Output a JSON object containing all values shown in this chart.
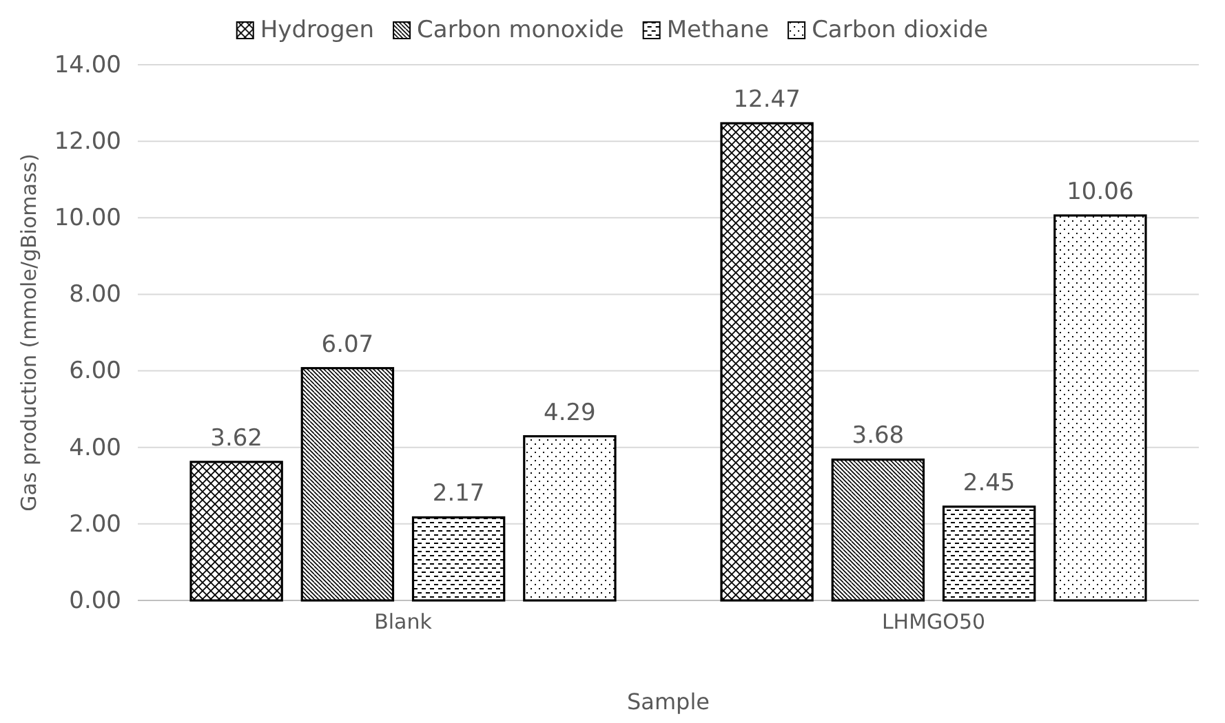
{
  "chart_data": {
    "type": "bar",
    "xlabel": "Sample",
    "ylabel": "Gas production (mmole/gBiomass)",
    "categories": [
      "Blank",
      "LHMGO50"
    ],
    "series": [
      {
        "name": "Hydrogen",
        "color": "#000000",
        "values": [
          3.62,
          12.47
        ]
      },
      {
        "name": "Carbon monoxide",
        "color": "#000000",
        "values": [
          6.07,
          3.68
        ]
      },
      {
        "name": "Methane",
        "color": "#000000",
        "values": [
          2.17,
          2.45
        ]
      },
      {
        "name": "Carbon dioxide",
        "color": "#000000",
        "values": [
          4.29,
          10.06
        ]
      }
    ],
    "ylim": [
      0,
      14
    ],
    "yticks": [
      {
        "value": 0,
        "label": "0.00"
      },
      {
        "value": 2,
        "label": "2.00"
      },
      {
        "value": 4,
        "label": "4.00"
      },
      {
        "value": 6,
        "label": "6.00"
      },
      {
        "value": 8,
        "label": "8.00"
      },
      {
        "value": 10,
        "label": "10.00"
      },
      {
        "value": 12,
        "label": "12.00"
      },
      {
        "value": 14,
        "label": "14.00"
      }
    ],
    "grid": "y",
    "legend": "top",
    "data_labels": true
  }
}
